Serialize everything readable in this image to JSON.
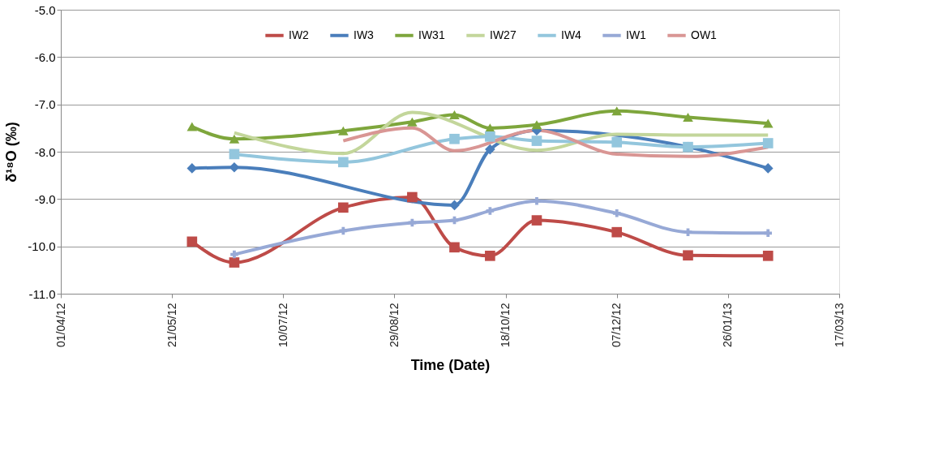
{
  "chart_data": {
    "type": "line",
    "xlabel": "Time (Date)",
    "ylabel": "δ¹⁸O (‰)",
    "x": [
      "2012-05-30",
      "2012-06-18",
      "2012-08-06",
      "2012-09-06",
      "2012-09-25",
      "2012-10-11",
      "2012-11-01",
      "2012-12-07",
      "2013-01-08",
      "2013-02-13"
    ],
    "series": [
      {
        "name": "IW2",
        "color": "#be4b48",
        "marker": "square",
        "values": [
          -9.9,
          -10.34,
          -9.18,
          -8.96,
          -10.02,
          -10.2,
          -9.45,
          -9.7,
          -10.19,
          -10.2
        ]
      },
      {
        "name": "IW3",
        "color": "#4a7ebb",
        "marker": "diamond",
        "values": [
          -8.35,
          -8.33,
          null,
          null,
          -9.13,
          -7.95,
          -7.55,
          null,
          -7.9,
          -8.35
        ]
      },
      {
        "name": "IW31",
        "color": "#7ea63c",
        "marker": "triangle",
        "values": [
          -7.47,
          -7.73,
          -7.56,
          -7.37,
          -7.22,
          -7.5,
          -7.43,
          -7.14,
          -7.27,
          -7.4
        ]
      },
      {
        "name": "IW27",
        "color": "#c3d69b",
        "marker": "none",
        "values": [
          null,
          -7.6,
          -8.04,
          -7.17,
          null,
          null,
          -7.97,
          -7.63,
          -7.65,
          -7.65
        ]
      },
      {
        "name": "IW4",
        "color": "#93c6dd",
        "marker": "square",
        "values": [
          null,
          -8.05,
          -8.22,
          null,
          -7.73,
          -7.68,
          -7.77,
          -7.8,
          -7.9,
          -7.82
        ]
      },
      {
        "name": "IW1",
        "color": "#97a9d6",
        "marker": "cross",
        "values": [
          null,
          -10.17,
          -9.67,
          -9.5,
          -9.45,
          -9.25,
          -9.04,
          -9.3,
          -9.7,
          -9.72
        ]
      },
      {
        "name": "OW1",
        "color": "#d99694",
        "marker": "none",
        "values": [
          null,
          null,
          -7.77,
          -7.5,
          -7.98,
          null,
          -7.55,
          -8.05,
          -8.1,
          -7.9
        ]
      }
    ],
    "xlim": [
      "2012-04-01",
      "2013-03-17"
    ],
    "xticks": [
      {
        "value": "2012-04-01",
        "label": "01/04/12"
      },
      {
        "value": "2012-05-21",
        "label": "21/05/12"
      },
      {
        "value": "2012-07-10",
        "label": "10/07/12"
      },
      {
        "value": "2012-08-29",
        "label": "29/08/12"
      },
      {
        "value": "2012-10-18",
        "label": "18/10/12"
      },
      {
        "value": "2012-12-07",
        "label": "07/12/12"
      },
      {
        "value": "2013-01-26",
        "label": "26/01/13"
      },
      {
        "value": "2013-03-17",
        "label": "17/03/13"
      }
    ],
    "ylim": [
      -11,
      -5
    ],
    "yticks": [
      {
        "value": -11,
        "label": "-11.0"
      },
      {
        "value": -10,
        "label": "-10.0"
      },
      {
        "value": -9,
        "label": "-9.0"
      },
      {
        "value": -8,
        "label": "-8.0"
      },
      {
        "value": -7,
        "label": "-7.0"
      },
      {
        "value": -6,
        "label": "-6.0"
      },
      {
        "value": -5,
        "label": "-5.0"
      }
    ],
    "grid": "y",
    "legend": "top",
    "line_style": "solid"
  }
}
